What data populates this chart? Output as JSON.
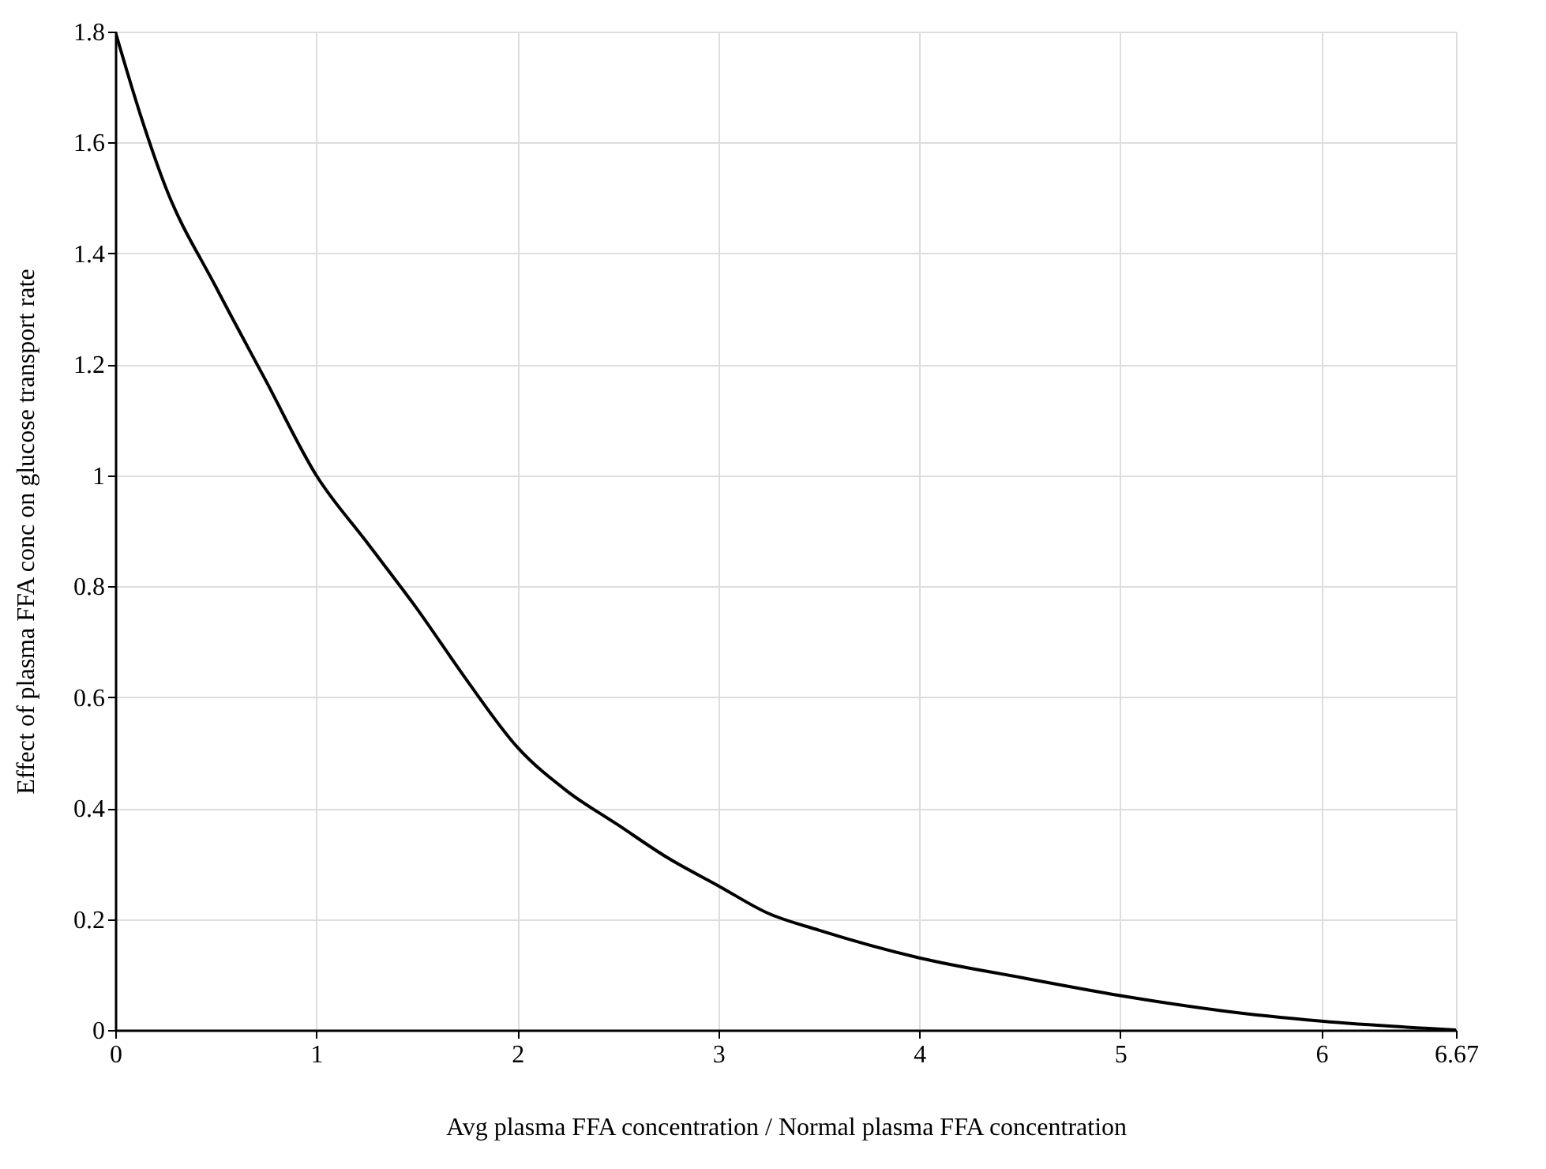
{
  "chart_data": {
    "type": "line",
    "xlabel": "Avg plasma FFA concentration / Normal plasma FFA concentration",
    "ylabel": "Effect of plasma FFA conc on glucose transport rate",
    "x": [
      0,
      0.125,
      0.25,
      0.5,
      0.75,
      1,
      1.25,
      1.5,
      1.75,
      2,
      2.25,
      2.5,
      2.75,
      3,
      3.25,
      3.5,
      4,
      4.5,
      5,
      5.5,
      6,
      6.67
    ],
    "series": [
      {
        "color": "#000000",
        "values": [
          1.8,
          1.65,
          1.52,
          1.34,
          1.17,
          1.0,
          0.88,
          0.76,
          0.63,
          0.51,
          0.43,
          0.37,
          0.31,
          0.26,
          0.21,
          0.18,
          0.13,
          0.095,
          0.062,
          0.035,
          0.016,
          0
        ]
      }
    ],
    "xlim": [
      0,
      6.67
    ],
    "xticks": [
      0,
      1,
      2,
      3,
      4,
      5,
      6,
      6.67
    ],
    "ylim": [
      0,
      1.8
    ],
    "yticks": [
      0,
      0.2,
      0.4,
      0.6,
      0.8,
      1,
      1.2,
      1.4,
      1.6,
      1.8
    ],
    "grid": true,
    "line_style": "solid",
    "marker": "none"
  }
}
